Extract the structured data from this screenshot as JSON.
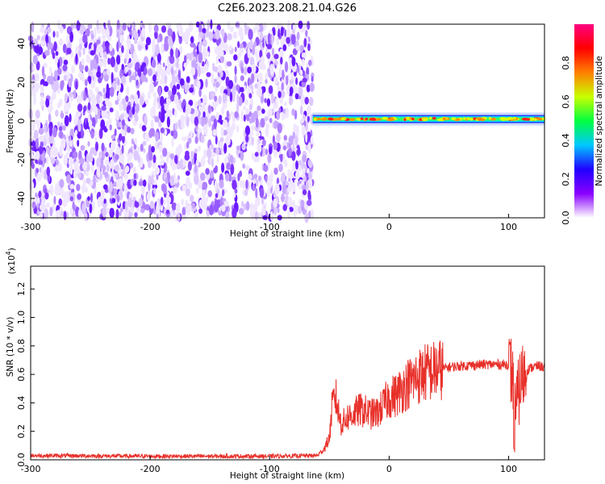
{
  "title": "C2E6.2023.208.21.04.G26",
  "chart_data": [
    {
      "type": "heatmap",
      "title": "C2E6.2023.208.21.04.G26",
      "xlabel": "Height of straight line (km)",
      "ylabel": "Frequency (Hz)",
      "xlim": [
        -300,
        130
      ],
      "ylim": [
        -50,
        50
      ],
      "xticks": [
        -300,
        -200,
        -100,
        0,
        100
      ],
      "yticks": [
        -40,
        -20,
        0,
        20,
        40
      ],
      "colorbar": {
        "label": "Normalized spectral amplitude",
        "range": [
          0.0,
          1.0
        ],
        "ticks": [
          "0.0",
          "0.2",
          "0.4",
          "0.6",
          "0.8"
        ],
        "colormap": [
          "#ffffff",
          "#8a00ff",
          "#2000ff",
          "#00c8ff",
          "#00ff40",
          "#c8ff00",
          "#ff8000",
          "#ff0000",
          "#ff0080"
        ]
      },
      "regions": [
        {
          "description": "noise",
          "x_range": [
            -300,
            -64
          ],
          "freq_range": [
            -50,
            50
          ],
          "amplitude": "0.0-0.15"
        },
        {
          "description": "signal band",
          "x_range": [
            -64,
            130
          ],
          "center_freq": 1,
          "freq_range": [
            -3,
            5
          ],
          "amplitude": "0.2-1.0"
        }
      ]
    },
    {
      "type": "line",
      "xlabel": "Height of straight line (km)",
      "ylabel": "SNR (10 * v/v)",
      "y_scale_label": "(x10",
      "y_scale_exponent": "4",
      "color": "#e8302a",
      "xlim": [
        -300,
        130
      ],
      "ylim": [
        0,
        13600
      ],
      "xticks": [
        -300,
        -200,
        -100,
        0,
        100
      ],
      "yticks": [
        "0.0",
        "0.2",
        "0.4",
        "0.6",
        "0.8",
        "1.0",
        "1.2"
      ],
      "x": [
        -300,
        -200,
        -100,
        -60,
        -55,
        -50,
        -48,
        -45,
        -42,
        -40,
        -35,
        -30,
        -25,
        -20,
        -15,
        -10,
        -5,
        0,
        5,
        10,
        15,
        20,
        25,
        30,
        35,
        40,
        45,
        50,
        60,
        70,
        80,
        90,
        100,
        103,
        105,
        107,
        110,
        115,
        120,
        125,
        130
      ],
      "y": [
        300,
        250,
        250,
        300,
        700,
        1500,
        3500,
        4500,
        3200,
        2500,
        3000,
        3200,
        3500,
        3400,
        3200,
        3300,
        3800,
        4400,
        4500,
        4900,
        5300,
        5600,
        5900,
        6100,
        6200,
        6300,
        6400,
        6500,
        6600,
        6650,
        6700,
        6700,
        6700,
        6000,
        3000,
        4000,
        5500,
        6300,
        6500,
        6600,
        6500
      ]
    }
  ]
}
